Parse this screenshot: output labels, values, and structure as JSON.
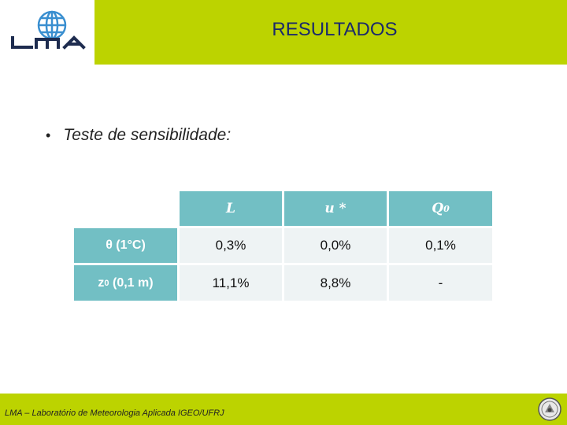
{
  "header": {
    "logo_text": "LMA",
    "title": "RESULTADOS"
  },
  "content": {
    "bullet": "Teste de sensibilidade:"
  },
  "table": {
    "columns": [
      "L",
      "u *",
      "Q"
    ],
    "column3_subscript": "0",
    "rows": [
      {
        "label": "θ (1°C)",
        "label_sub": "",
        "values": [
          "0,3%",
          "0,0%",
          "0,1%"
        ]
      },
      {
        "label_pre": "z",
        "label_sub": "0",
        "label_post": " (0,1 m)",
        "values": [
          "11,1%",
          "8,8%",
          "-"
        ]
      }
    ]
  },
  "footer": {
    "text": "LMA – Laboratório de Meteorologia Aplicada IGEO/UFRJ",
    "seal_icon": "university-seal-icon"
  },
  "colors": {
    "accent_green": "#bcd300",
    "table_teal": "#72bfc4",
    "title_blue": "#1b2a6b"
  }
}
